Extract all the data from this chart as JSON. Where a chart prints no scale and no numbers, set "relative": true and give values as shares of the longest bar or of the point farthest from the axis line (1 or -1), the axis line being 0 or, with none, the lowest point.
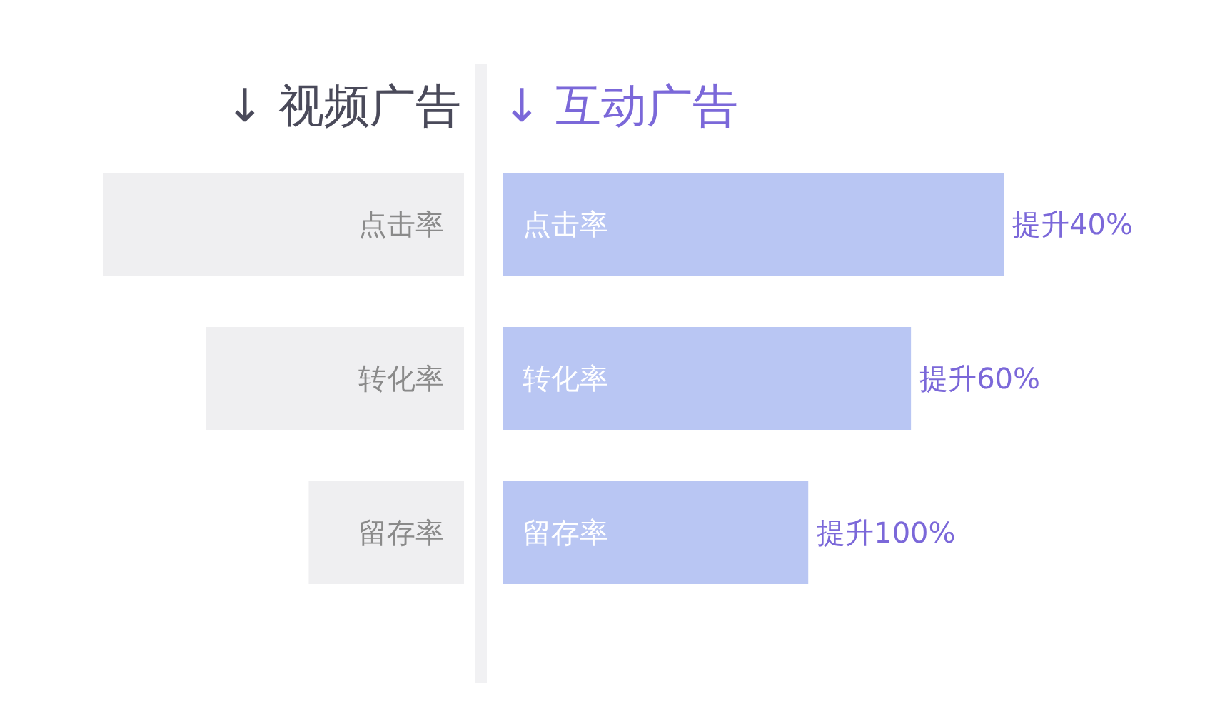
{
  "chart_data": [
    {
      "type": "bar",
      "orientation": "horizontal",
      "relative": true,
      "title": "↓ 视频广告",
      "categories": [
        "点击率",
        "转化率",
        "留存率"
      ],
      "series": [
        {
          "color": "#efeff1",
          "values": [
            -1,
            -0.715,
            -0.43
          ]
        }
      ]
    },
    {
      "type": "bar",
      "orientation": "horizontal",
      "relative": true,
      "title": "↓ 互动广告",
      "categories": [
        "点击率",
        "转化率",
        "留存率"
      ],
      "series": [
        {
          "color": "#b9c6f3",
          "values": [
            1,
            0.815,
            0.61
          ]
        }
      ],
      "annotations": [
        {
          "text": "提升40%",
          "x": 1,
          "y": "点击率"
        },
        {
          "text": "提升60%",
          "x": 0.815,
          "y": "转化率"
        },
        {
          "text": "提升100%",
          "x": 0.61,
          "y": "留存率"
        }
      ]
    }
  ]
}
